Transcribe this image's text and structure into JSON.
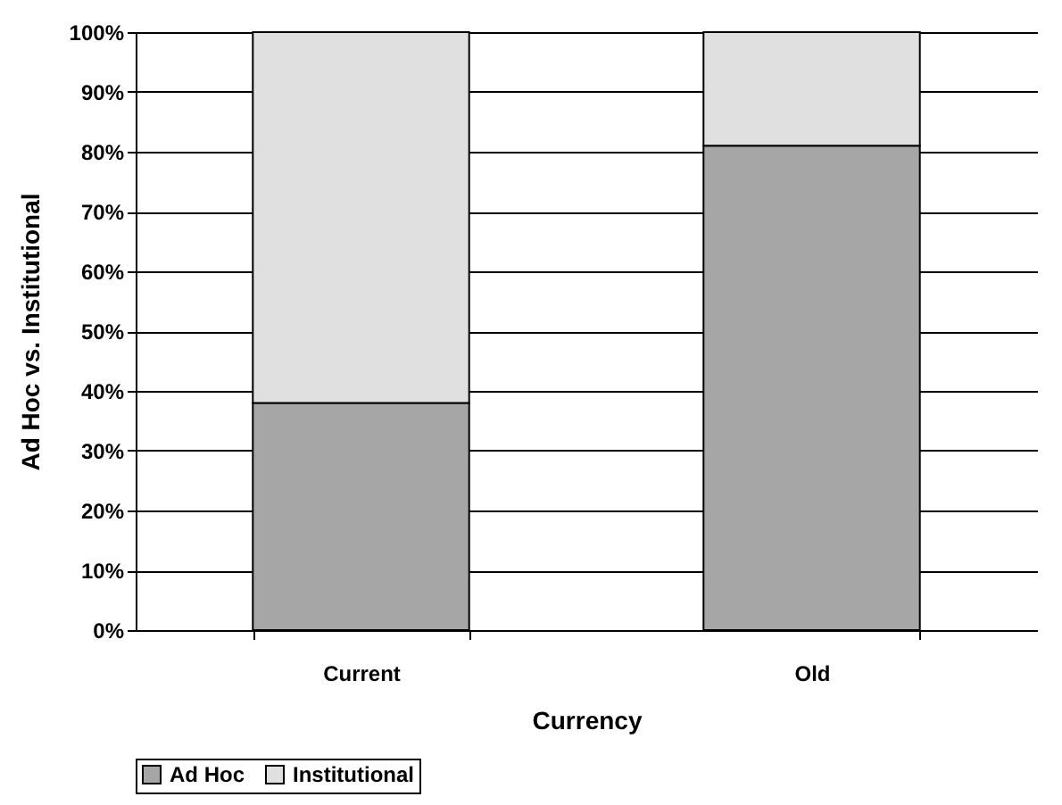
{
  "chart_data": {
    "type": "bar",
    "stacked": true,
    "xlabel": "Currency",
    "ylabel": "Ad Hoc vs. Institutional",
    "categories": [
      "Current",
      "Old"
    ],
    "series": [
      {
        "name": "Ad Hoc",
        "color": "#a6a6a6",
        "values": [
          38,
          81
        ]
      },
      {
        "name": "Institutional",
        "color": "#e0e0e0",
        "values": [
          62,
          19
        ]
      }
    ],
    "ylim": [
      0,
      100
    ],
    "yticks": [
      {
        "value": 0,
        "label": "0%"
      },
      {
        "value": 10,
        "label": "10%"
      },
      {
        "value": 20,
        "label": "20%"
      },
      {
        "value": 30,
        "label": "30%"
      },
      {
        "value": 40,
        "label": "40%"
      },
      {
        "value": 50,
        "label": "50%"
      },
      {
        "value": 60,
        "label": "60%"
      },
      {
        "value": 70,
        "label": "70%"
      },
      {
        "value": 80,
        "label": "80%"
      },
      {
        "value": 90,
        "label": "90%"
      },
      {
        "value": 100,
        "label": "100%"
      }
    ],
    "grid": "y",
    "legend": "bottom"
  }
}
